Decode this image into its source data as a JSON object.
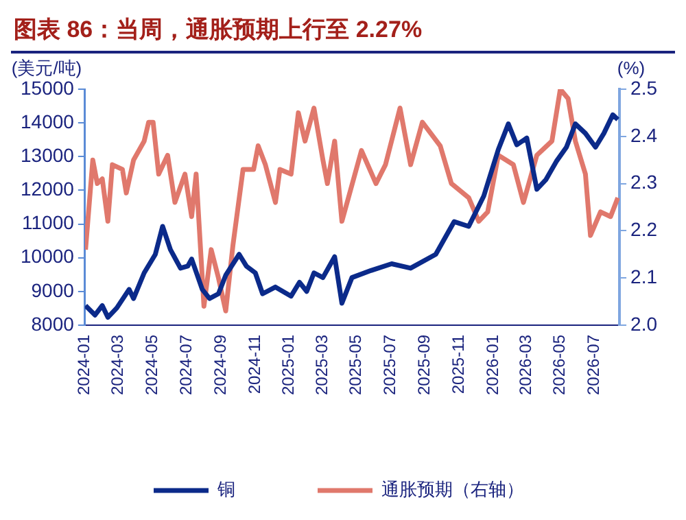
{
  "chart_data": {
    "type": "line",
    "title": "图表 86：当周，通胀预期上行至 2.27%",
    "ylabel": "(美元/吨)",
    "y2label": "(%)",
    "xlim": [
      "2024-01-01",
      "2026-08-15"
    ],
    "xticks": [
      "2024-01",
      "2024-03",
      "2024-05",
      "2024-07",
      "2024-09",
      "2024-11",
      "2025-01",
      "2025-03",
      "2025-05",
      "2025-07",
      "2025-09",
      "2025-11",
      "2026-01",
      "2026-03",
      "2026-05",
      "2026-07"
    ],
    "ylim": [
      8000,
      15000
    ],
    "yticks": [
      8000,
      9000,
      10000,
      11000,
      12000,
      13000,
      14000,
      15000
    ],
    "y2lim": [
      2.0,
      2.5
    ],
    "y2ticks": [
      {
        "value": 2.0,
        "label": "2.0"
      },
      2.1,
      2.2,
      2.3,
      2.4,
      2.5
    ],
    "grid": false,
    "legend": "bottom",
    "marker": "none",
    "series": [
      {
        "name": "铜",
        "color": "#0b2a8a",
        "x": [
          "2024-01-02",
          "2024-01-19",
          "2024-02-01",
          "2024-02-11",
          "2024-02-27",
          "2024-03-20",
          "2024-03-28",
          "2024-04-16",
          "2024-05-06",
          "2024-05-19",
          "2024-06-02",
          "2024-06-20",
          "2024-07-03",
          "2024-07-10",
          "2024-07-29",
          "2024-08-11",
          "2024-08-27",
          "2024-09-09",
          "2024-10-03",
          "2024-10-16",
          "2024-11-01",
          "2024-11-14",
          "2024-12-07",
          "2025-01-04",
          "2025-01-19",
          "2025-02-01",
          "2025-02-14",
          "2025-03-02",
          "2025-03-23",
          "2025-04-05",
          "2025-04-23",
          "2025-05-27",
          "2025-07-03",
          "2025-08-06",
          "2025-09-20",
          "2025-10-23",
          "2025-11-18",
          "2025-12-15",
          "2026-01-10",
          "2026-01-28",
          "2026-02-12",
          "2026-03-02",
          "2026-03-20",
          "2026-04-05",
          "2026-04-24",
          "2026-05-12",
          "2026-05-28",
          "2026-06-15",
          "2026-07-03",
          "2026-07-18",
          "2026-08-03",
          "2026-08-12"
        ],
        "values": [
          8580,
          8300,
          8580,
          8230,
          8510,
          9060,
          8790,
          9550,
          10100,
          10930,
          10240,
          9690,
          9750,
          9960,
          9060,
          8790,
          8930,
          9480,
          10100,
          9750,
          9550,
          8930,
          9130,
          8860,
          9270,
          9000,
          9550,
          9410,
          10030,
          8650,
          9410,
          9620,
          9820,
          9690,
          10100,
          11070,
          10930,
          11830,
          13210,
          13970,
          13350,
          13550,
          12030,
          12310,
          12860,
          13280,
          13970,
          13690,
          13280,
          13690,
          14240,
          14100
        ]
      },
      {
        "name": "通胀预期（右轴）",
        "color": "#e0786c",
        "axis": "y2",
        "x": [
          "2024-01-02",
          "2024-01-15",
          "2024-01-23",
          "2024-02-01",
          "2024-02-11",
          "2024-02-19",
          "2024-03-08",
          "2024-03-15",
          "2024-03-28",
          "2024-04-16",
          "2024-04-24",
          "2024-05-02",
          "2024-05-12",
          "2024-05-28",
          "2024-06-10",
          "2024-06-28",
          "2024-07-10",
          "2024-07-18",
          "2024-08-01",
          "2024-08-14",
          "2024-08-27",
          "2024-09-09",
          "2024-09-22",
          "2024-10-10",
          "2024-10-29",
          "2024-11-06",
          "2024-11-19",
          "2024-12-07",
          "2024-12-15",
          "2025-01-04",
          "2025-01-17",
          "2025-01-29",
          "2025-02-14",
          "2025-03-02",
          "2025-03-10",
          "2025-03-23",
          "2025-04-05",
          "2025-05-10",
          "2025-06-05",
          "2025-06-22",
          "2025-07-18",
          "2025-08-06",
          "2025-08-27",
          "2025-09-28",
          "2025-10-18",
          "2025-11-18",
          "2025-12-06",
          "2025-12-22",
          "2026-01-10",
          "2026-02-06",
          "2026-02-24",
          "2026-03-20",
          "2026-04-16",
          "2026-05-01",
          "2026-05-15",
          "2026-05-28",
          "2026-06-15",
          "2026-06-24",
          "2026-07-12",
          "2026-07-30",
          "2026-08-12"
        ],
        "values": [
          2.16,
          2.35,
          2.3,
          2.31,
          2.22,
          2.34,
          2.33,
          2.28,
          2.35,
          2.39,
          2.43,
          2.43,
          2.32,
          2.36,
          2.26,
          2.32,
          2.23,
          2.32,
          2.04,
          2.16,
          2.1,
          2.03,
          2.17,
          2.33,
          2.33,
          2.38,
          2.34,
          2.26,
          2.33,
          2.32,
          2.45,
          2.39,
          2.46,
          2.35,
          2.3,
          2.39,
          2.22,
          2.37,
          2.3,
          2.34,
          2.46,
          2.34,
          2.43,
          2.38,
          2.3,
          2.27,
          2.22,
          2.24,
          2.36,
          2.34,
          2.26,
          2.36,
          2.39,
          2.5,
          2.48,
          2.39,
          2.32,
          2.19,
          2.24,
          2.23,
          2.27
        ]
      }
    ]
  }
}
